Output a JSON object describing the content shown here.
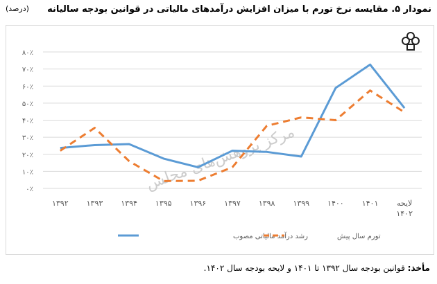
{
  "title": "نمودار ۵. مقایسه نرخ تورم با میزان افزایش درآمدهای مالیاتی در قوانین بودجه سالیانه",
  "unit": "(درصد)",
  "logo_text": "مرکز پژوهش‌های مجلس شورای اسلامی",
  "watermark": "مرکز پژوهش‌های مجلس",
  "footer": {
    "label": "مأخذ:",
    "text": " قوانین بودجه سال ۱۳۹۲ تا ۱۴۰۱ و لایحه بودجه سال ۱۴۰۲."
  },
  "chart_data": {
    "type": "line",
    "categories": [
      "۱۳۹۲",
      "۱۳۹۳",
      "۱۳۹۴",
      "۱۳۹۵",
      "۱۳۹۶",
      "۱۳۹۷",
      "۱۳۹۸",
      "۱۳۹۹",
      "۱۴۰۰",
      "۱۴۰۱",
      "لایحه ۱۴۰۲"
    ],
    "yticks": [
      "۰٪",
      "۱۰٪",
      "۲۰٪",
      "۳۰٪",
      "۴۰٪",
      "۵۰٪",
      "۶۰٪",
      "۷۰٪",
      "۸۰٪"
    ],
    "ylim": [
      0,
      80
    ],
    "grid": true,
    "legend": "bottom",
    "series": [
      {
        "name": "رشد درآمد مالیاتی مصوب",
        "color": "#5b9bd5",
        "style": "solid",
        "values": [
          23.7,
          25.4,
          26,
          17.5,
          12.4,
          22.1,
          21.4,
          18.7,
          58.9,
          72.6,
          47.1
        ]
      },
      {
        "name": "تورم سال پیش",
        "color": "#ed7d31",
        "style": "dashed",
        "values": [
          22.1,
          35.5,
          16,
          4.3,
          4.5,
          12.4,
          36.7,
          41.6,
          40,
          57.4,
          44.6
        ]
      }
    ]
  }
}
